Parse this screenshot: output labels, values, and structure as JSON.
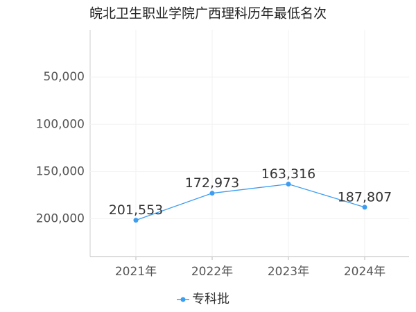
{
  "chart_data": {
    "type": "line",
    "title": "皖北卫生职业学院广西理科历年最低名次",
    "categories": [
      "2021年",
      "2022年",
      "2023年",
      "2024年"
    ],
    "series": [
      {
        "name": "专科批",
        "color": "#3d9df0",
        "values": [
          201553,
          172973,
          163316,
          187807
        ],
        "value_labels": [
          "201,553",
          "172,973",
          "163,316",
          "187,807"
        ]
      }
    ],
    "ylim": [
      0,
      240000
    ],
    "inverted": true,
    "yticks": [
      {
        "value": 50000,
        "label": "50,000"
      },
      {
        "value": 100000,
        "label": "100,000"
      },
      {
        "value": 150000,
        "label": "150,000"
      },
      {
        "value": 200000,
        "label": "200,000"
      }
    ],
    "grid": true,
    "legend": "bottom"
  }
}
